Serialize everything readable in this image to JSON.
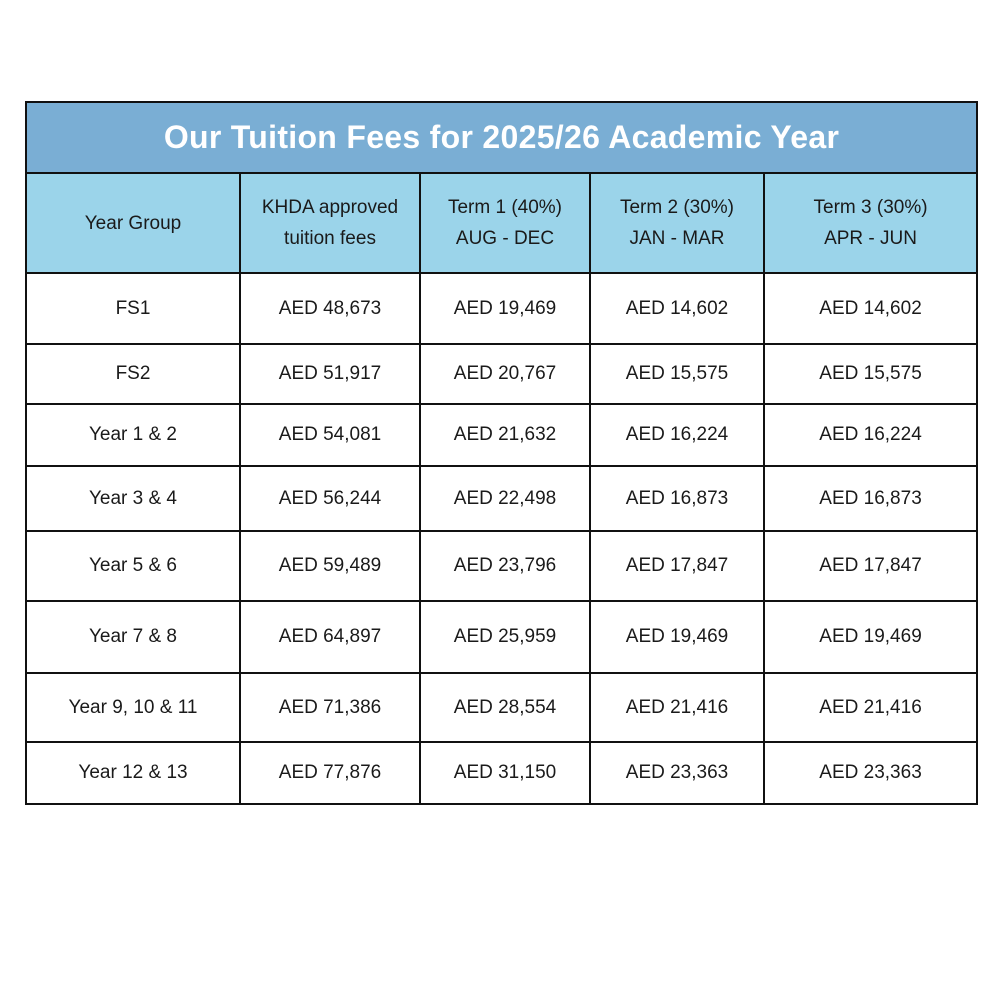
{
  "title": "Our Tuition Fees  for 2025/26 Academic Year",
  "colors": {
    "title_bg": "#7aaed4",
    "header_bg": "#9bd4ea",
    "border": "#111111"
  },
  "headers": [
    {
      "line1": "Year Group",
      "line2": ""
    },
    {
      "line1": "KHDA approved",
      "line2": "tuition fees"
    },
    {
      "line1": "Term 1 (40%)",
      "line2": "AUG - DEC"
    },
    {
      "line1": "Term 2 (30%)",
      "line2": "JAN - MAR"
    },
    {
      "line1": "Term 3 (30%)",
      "line2": "APR - JUN"
    }
  ],
  "rows": [
    [
      "FS1",
      "AED 48,673",
      "AED 19,469",
      "AED 14,602",
      "AED 14,602"
    ],
    [
      "FS2",
      "AED 51,917",
      "AED 20,767",
      "AED 15,575",
      "AED 15,575"
    ],
    [
      "Year 1 & 2",
      "AED 54,081",
      "AED 21,632",
      "AED 16,224",
      "AED 16,224"
    ],
    [
      "Year 3 & 4",
      "AED 56,244",
      "AED 22,498",
      "AED 16,873",
      "AED 16,873"
    ],
    [
      "Year 5 & 6",
      "AED 59,489",
      "AED 23,796",
      "AED 17,847",
      "AED 17,847"
    ],
    [
      "Year 7 & 8",
      "AED 64,897",
      "AED 25,959",
      "AED 19,469",
      "AED 19,469"
    ],
    [
      "Year 9, 10 & 11",
      "AED 71,386",
      "AED 28,554",
      "AED 21,416",
      "AED 21,416"
    ],
    [
      "Year 12 & 13",
      "AED 77,876",
      "AED 31,150",
      "AED 23,363",
      "AED 23,363"
    ]
  ]
}
